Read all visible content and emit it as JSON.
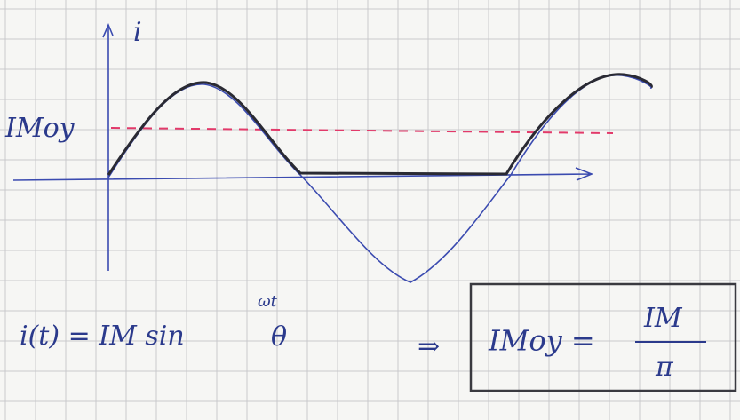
{
  "axis": {
    "label": "i"
  },
  "mean_label": "IMoy",
  "formula": {
    "lhs": "i(t) = IM sin",
    "angle": "θ",
    "angle_note": "ωt"
  },
  "implies": "⇒",
  "result": {
    "lhs": "IMoy =",
    "numerator": "IM",
    "denominator": "π"
  }
}
